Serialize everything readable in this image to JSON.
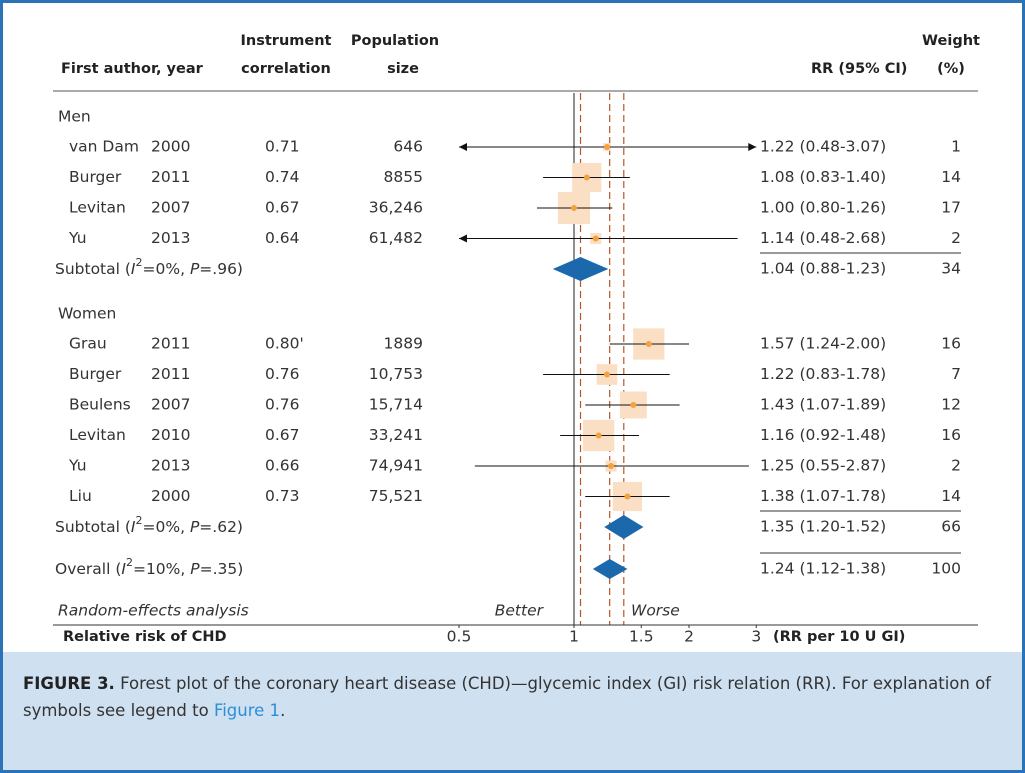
{
  "chart_data": {
    "type": "forest",
    "columns": {
      "study": "First author, year",
      "correlation": [
        "Instrument",
        "correlation"
      ],
      "population": [
        "Population",
        "size"
      ],
      "ci": "RR (95% CI)",
      "weight": [
        "Weight",
        "(%)"
      ]
    },
    "groups": [
      {
        "name": "Men",
        "studies": [
          {
            "author": "van Dam",
            "year": 2000,
            "correlation": "0.71",
            "population": "646",
            "rr": 1.22,
            "lo": 0.48,
            "hi": 3.07,
            "ci_label": "1.22 (0.48-3.07)",
            "weight": 1
          },
          {
            "author": "Burger",
            "year": 2011,
            "correlation": "0.74",
            "population": "8855",
            "rr": 1.08,
            "lo": 0.83,
            "hi": 1.4,
            "ci_label": "1.08 (0.83-1.40)",
            "weight": 14
          },
          {
            "author": "Levitan",
            "year": 2007,
            "correlation": "0.67",
            "population": "36,246",
            "rr": 1.0,
            "lo": 0.8,
            "hi": 1.26,
            "ci_label": "1.00 (0.80-1.26)",
            "weight": 17
          },
          {
            "author": "Yu",
            "year": 2013,
            "correlation": "0.64",
            "population": "61,482",
            "rr": 1.14,
            "lo": 0.48,
            "hi": 2.68,
            "ci_label": "1.14 (0.48-2.68)",
            "weight": 2
          }
        ],
        "subtotal": {
          "label": [
            {
              "text": "Subtotal ("
            },
            {
              "text": "I",
              "style": "italic"
            },
            {
              "text": "2",
              "style": "sup"
            },
            {
              "text": "=0%, "
            },
            {
              "text": "P",
              "style": "italic"
            },
            {
              "text": "=.96)"
            }
          ],
          "rr": 1.04,
          "lo": 0.88,
          "hi": 1.23,
          "ci_label": "1.04 (0.88-1.23)",
          "weight": 34
        }
      },
      {
        "name": "Women",
        "studies": [
          {
            "author": "Grau",
            "year": 2011,
            "correlation": "0.80'",
            "population": "1889",
            "rr": 1.57,
            "lo": 1.24,
            "hi": 2.0,
            "ci_label": "1.57 (1.24-2.00)",
            "weight": 16
          },
          {
            "author": "Burger",
            "year": 2011,
            "correlation": "0.76",
            "population": "10,753",
            "rr": 1.22,
            "lo": 0.83,
            "hi": 1.78,
            "ci_label": "1.22 (0.83-1.78)",
            "weight": 7
          },
          {
            "author": "Beulens",
            "year": 2007,
            "correlation": "0.76",
            "population": "15,714",
            "rr": 1.43,
            "lo": 1.07,
            "hi": 1.89,
            "ci_label": "1.43 (1.07-1.89)",
            "weight": 12
          },
          {
            "author": "Levitan",
            "year": 2010,
            "correlation": "0.67",
            "population": "33,241",
            "rr": 1.16,
            "lo": 0.92,
            "hi": 1.48,
            "ci_label": "1.16 (0.92-1.48)",
            "weight": 16
          },
          {
            "author": "Yu",
            "year": 2013,
            "correlation": "0.66",
            "population": "74,941",
            "rr": 1.25,
            "lo": 0.55,
            "hi": 2.87,
            "ci_label": "1.25 (0.55-2.87)",
            "weight": 2
          },
          {
            "author": "Liu",
            "year": 2000,
            "correlation": "0.73",
            "population": "75,521",
            "rr": 1.38,
            "lo": 1.07,
            "hi": 1.78,
            "ci_label": "1.38 (1.07-1.78)",
            "weight": 14
          }
        ],
        "subtotal": {
          "label": [
            {
              "text": "Subtotal ("
            },
            {
              "text": "I",
              "style": "italic"
            },
            {
              "text": "2",
              "style": "sup"
            },
            {
              "text": "=0%, "
            },
            {
              "text": "P",
              "style": "italic"
            },
            {
              "text": "=.62)"
            }
          ],
          "rr": 1.35,
          "lo": 1.2,
          "hi": 1.52,
          "ci_label": "1.35 (1.20-1.52)",
          "weight": 66
        }
      }
    ],
    "overall": {
      "label": [
        {
          "text": "Overall ("
        },
        {
          "text": "I",
          "style": "italic"
        },
        {
          "text": "2",
          "style": "sup"
        },
        {
          "text": "=10%, "
        },
        {
          "text": "P",
          "style": "italic"
        },
        {
          "text": "=.35)"
        }
      ],
      "rr": 1.24,
      "lo": 1.12,
      "hi": 1.38,
      "ci_label": "1.24 (1.12-1.38)",
      "weight": 100
    },
    "model": "Random-effects analysis",
    "left_label": "Better",
    "right_label": "Worse",
    "x_label": "Relative risk of CHD",
    "x_unit": "(RR per 10 U GI)",
    "log_x": true,
    "xlim": [
      0.5,
      3
    ],
    "xticks": [
      0.5,
      1,
      1.5,
      2,
      3
    ],
    "reference_line": 1,
    "colors": {
      "square": "#fbdfc4",
      "point": "#f3a23e",
      "diamond": "#1b68ad",
      "ci": "#111111",
      "reference": "#b5562a"
    }
  },
  "caption": {
    "label": "FIGURE 3.",
    "text": "Forest plot of the coronary heart disease (CHD)—glycemic index (GI) risk relation (RR). For explanation of symbols see legend to",
    "link": "Figure 1",
    "end": "."
  }
}
